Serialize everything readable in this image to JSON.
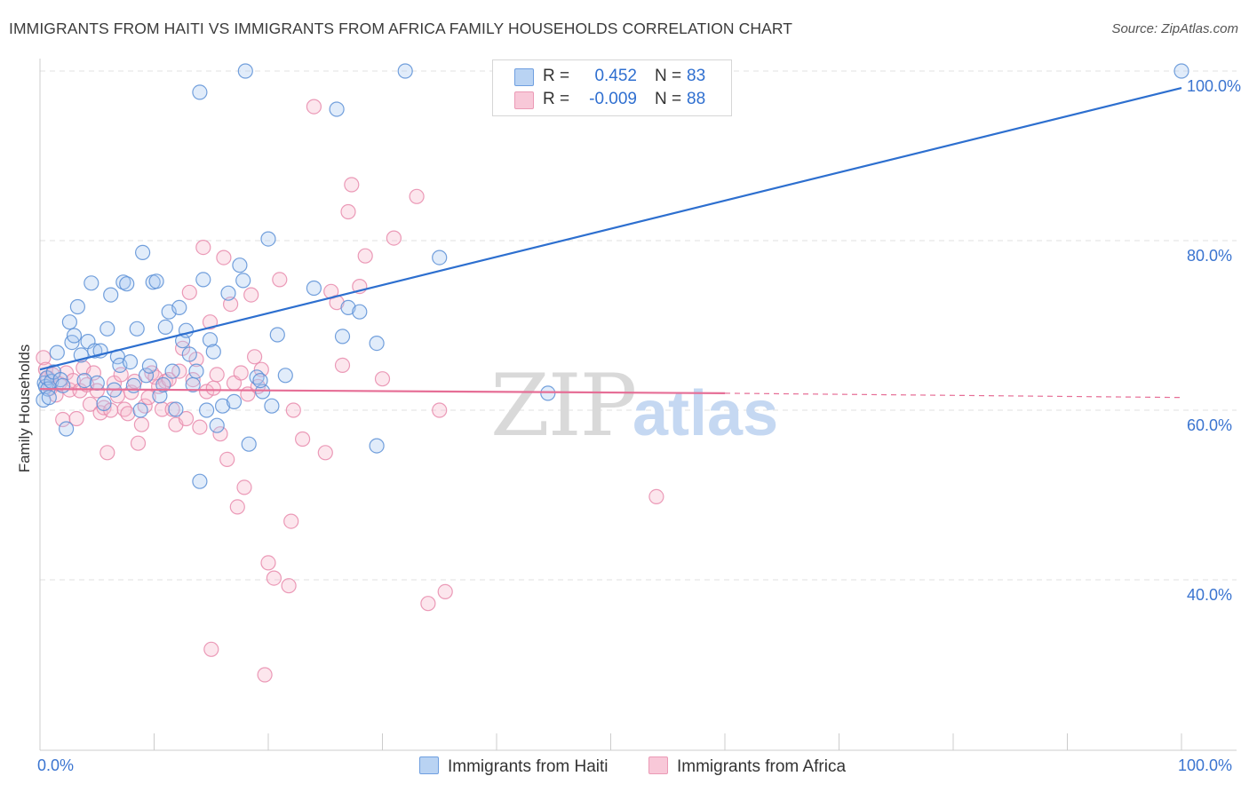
{
  "chart_data": {
    "type": "scatter",
    "title": "IMMIGRANTS FROM HAITI VS IMMIGRANTS FROM AFRICA FAMILY HOUSEHOLDS CORRELATION CHART",
    "source": "Source: ZipAtlas.com",
    "xlabel": "",
    "ylabel": "Family Households",
    "xlim": [
      0,
      100
    ],
    "ylim": [
      20,
      102
    ],
    "x_tick_labels": [
      "0.0%",
      "100.0%"
    ],
    "y_ticks": [
      40,
      60,
      80,
      100
    ],
    "y_tick_labels": [
      "40.0%",
      "60.0%",
      "80.0%",
      "100.0%"
    ],
    "watermark": "ZIPatlas",
    "series": [
      {
        "name": "Immigrants from Haiti",
        "color": "#8ab4e8",
        "line_color": "#2d6fcf",
        "R": "0.452",
        "N": "83",
        "trend": {
          "x": [
            0,
            100
          ],
          "y": [
            64.8,
            98.0
          ]
        },
        "points": [
          [
            0.3,
            61.2
          ],
          [
            0.4,
            63.2
          ],
          [
            0.5,
            62.8
          ],
          [
            0.6,
            63.8
          ],
          [
            0.7,
            62.5
          ],
          [
            0.8,
            61.5
          ],
          [
            1.0,
            63.4
          ],
          [
            1.2,
            64.5
          ],
          [
            1.5,
            66.8
          ],
          [
            1.8,
            63.6
          ],
          [
            2.0,
            62.9
          ],
          [
            2.3,
            57.8
          ],
          [
            2.6,
            70.4
          ],
          [
            2.8,
            68.0
          ],
          [
            3.0,
            68.8
          ],
          [
            3.3,
            72.2
          ],
          [
            3.6,
            66.5
          ],
          [
            3.9,
            63.5
          ],
          [
            4.2,
            68.1
          ],
          [
            4.5,
            75.0
          ],
          [
            4.8,
            67.0
          ],
          [
            5.0,
            63.2
          ],
          [
            5.3,
            67.0
          ],
          [
            5.6,
            60.8
          ],
          [
            5.9,
            69.6
          ],
          [
            6.2,
            73.6
          ],
          [
            6.5,
            62.4
          ],
          [
            6.8,
            66.3
          ],
          [
            7.0,
            65.3
          ],
          [
            7.3,
            75.1
          ],
          [
            7.6,
            74.9
          ],
          [
            7.9,
            65.7
          ],
          [
            8.2,
            62.9
          ],
          [
            8.5,
            69.6
          ],
          [
            8.8,
            60.0
          ],
          [
            9.0,
            78.6
          ],
          [
            9.3,
            64.1
          ],
          [
            9.6,
            65.2
          ],
          [
            9.9,
            75.1
          ],
          [
            10.2,
            75.2
          ],
          [
            10.5,
            61.7
          ],
          [
            10.8,
            63.0
          ],
          [
            11.0,
            69.8
          ],
          [
            11.3,
            71.6
          ],
          [
            11.6,
            64.6
          ],
          [
            11.9,
            60.1
          ],
          [
            12.2,
            72.1
          ],
          [
            12.5,
            68.2
          ],
          [
            12.8,
            69.4
          ],
          [
            13.1,
            66.6
          ],
          [
            13.4,
            63.0
          ],
          [
            13.7,
            64.6
          ],
          [
            14.0,
            51.6
          ],
          [
            14.3,
            75.4
          ],
          [
            14.6,
            60.0
          ],
          [
            14.9,
            68.3
          ],
          [
            15.2,
            66.9
          ],
          [
            15.5,
            58.2
          ],
          [
            16.0,
            60.5
          ],
          [
            16.5,
            73.8
          ],
          [
            17.0,
            61.0
          ],
          [
            17.5,
            77.1
          ],
          [
            17.8,
            75.3
          ],
          [
            18.3,
            56.0
          ],
          [
            19.0,
            63.9
          ],
          [
            19.5,
            62.2
          ],
          [
            20.3,
            60.5
          ],
          [
            20.8,
            68.9
          ],
          [
            19.3,
            63.5
          ],
          [
            14.0,
            97.5
          ],
          [
            18.0,
            100.0
          ],
          [
            32.0,
            100.0
          ],
          [
            26.0,
            95.5
          ],
          [
            21.5,
            64.1
          ],
          [
            20.0,
            80.2
          ],
          [
            24.0,
            74.4
          ],
          [
            29.5,
            55.8
          ],
          [
            26.5,
            68.7
          ],
          [
            27.0,
            72.1
          ],
          [
            28.0,
            71.6
          ],
          [
            29.5,
            67.9
          ],
          [
            35.0,
            78.0
          ],
          [
            44.5,
            62.0
          ],
          [
            100.0,
            100.0
          ]
        ]
      },
      {
        "name": "Immigrants from Africa",
        "color": "#f0a8c0",
        "line_color": "#e66e96",
        "R": "-0.009",
        "N": "88",
        "trend": {
          "x": [
            0,
            60
          ],
          "y": [
            62.5,
            62.0
          ]
        },
        "trend_dashed": {
          "x": [
            60,
            100
          ],
          "y": [
            62.0,
            61.5
          ]
        },
        "points": [
          [
            0.3,
            66.2
          ],
          [
            0.5,
            64.8
          ],
          [
            0.7,
            63.8
          ],
          [
            0.9,
            62.6
          ],
          [
            1.1,
            64.2
          ],
          [
            1.4,
            61.8
          ],
          [
            1.7,
            63.1
          ],
          [
            2.0,
            58.9
          ],
          [
            2.3,
            64.4
          ],
          [
            2.6,
            62.4
          ],
          [
            2.9,
            63.5
          ],
          [
            3.2,
            59.0
          ],
          [
            3.5,
            62.3
          ],
          [
            3.8,
            65.0
          ],
          [
            4.1,
            63.0
          ],
          [
            4.4,
            60.7
          ],
          [
            4.7,
            64.4
          ],
          [
            5.0,
            62.3
          ],
          [
            5.3,
            59.7
          ],
          [
            5.6,
            60.3
          ],
          [
            5.9,
            55.0
          ],
          [
            6.2,
            60.0
          ],
          [
            6.5,
            63.2
          ],
          [
            6.8,
            61.7
          ],
          [
            7.1,
            64.2
          ],
          [
            7.4,
            60.1
          ],
          [
            7.7,
            59.6
          ],
          [
            8.0,
            62.1
          ],
          [
            8.3,
            63.4
          ],
          [
            8.6,
            56.1
          ],
          [
            8.9,
            58.3
          ],
          [
            9.2,
            60.5
          ],
          [
            9.5,
            61.5
          ],
          [
            9.8,
            64.4
          ],
          [
            10.1,
            63.9
          ],
          [
            10.4,
            62.8
          ],
          [
            10.7,
            60.1
          ],
          [
            11.0,
            63.4
          ],
          [
            11.3,
            63.6
          ],
          [
            11.6,
            60.1
          ],
          [
            11.9,
            58.3
          ],
          [
            12.2,
            64.6
          ],
          [
            12.5,
            67.3
          ],
          [
            12.8,
            59.0
          ],
          [
            13.1,
            73.9
          ],
          [
            13.4,
            63.6
          ],
          [
            13.7,
            66.0
          ],
          [
            14.0,
            58.0
          ],
          [
            14.3,
            79.2
          ],
          [
            14.6,
            62.2
          ],
          [
            14.9,
            70.4
          ],
          [
            15.2,
            62.6
          ],
          [
            15.5,
            64.2
          ],
          [
            15.8,
            57.2
          ],
          [
            16.1,
            78.0
          ],
          [
            16.4,
            54.2
          ],
          [
            16.7,
            72.5
          ],
          [
            17.0,
            63.2
          ],
          [
            17.3,
            48.6
          ],
          [
            17.6,
            64.4
          ],
          [
            17.9,
            50.9
          ],
          [
            18.2,
            61.9
          ],
          [
            18.5,
            73.6
          ],
          [
            18.8,
            66.3
          ],
          [
            19.1,
            62.8
          ],
          [
            19.4,
            64.8
          ],
          [
            19.7,
            28.8
          ],
          [
            20.0,
            42.0
          ],
          [
            20.5,
            40.2
          ],
          [
            21.0,
            75.4
          ],
          [
            21.8,
            39.3
          ],
          [
            22.0,
            46.9
          ],
          [
            22.2,
            60.0
          ],
          [
            23.0,
            56.6
          ],
          [
            24.0,
            95.8
          ],
          [
            25.0,
            55.0
          ],
          [
            25.5,
            74.0
          ],
          [
            26.0,
            72.7
          ],
          [
            26.5,
            65.3
          ],
          [
            27.0,
            83.4
          ],
          [
            27.3,
            86.6
          ],
          [
            28.0,
            74.6
          ],
          [
            28.5,
            78.2
          ],
          [
            30.0,
            63.7
          ],
          [
            31.0,
            80.3
          ],
          [
            33.0,
            85.2
          ],
          [
            34.0,
            37.2
          ],
          [
            35.0,
            60.0
          ],
          [
            35.5,
            38.6
          ],
          [
            54.0,
            49.8
          ],
          [
            15.0,
            31.8
          ]
        ]
      }
    ]
  }
}
